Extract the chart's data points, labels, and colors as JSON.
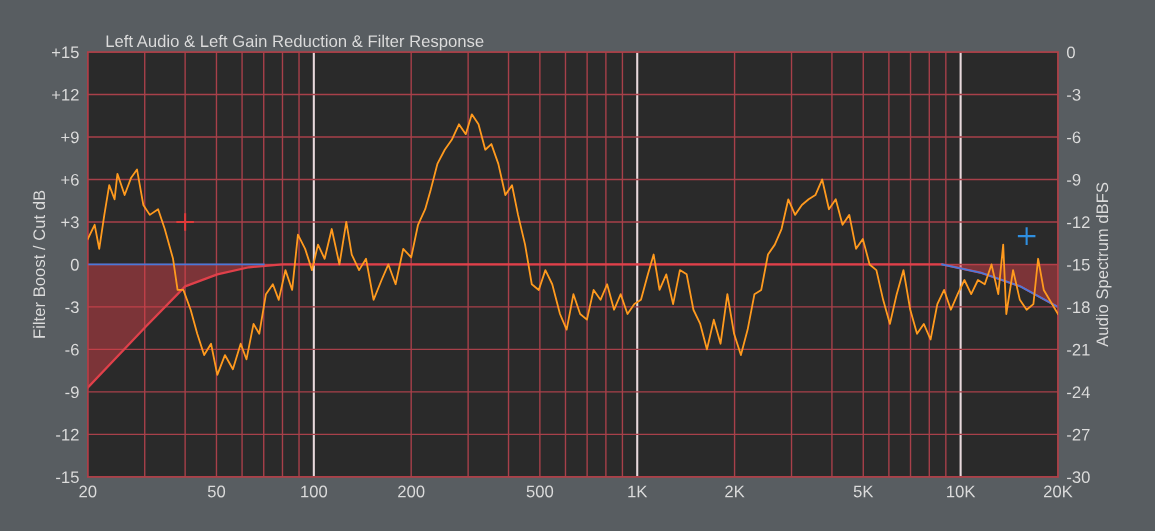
{
  "chart_data": {
    "type": "line",
    "title": "Left Audio & Left Gain Reduction & Filter Response",
    "ylabel": "Filter Boost / Cut dB",
    "y2label": "Audio Spectrum dBFS",
    "log": "x",
    "grid": true,
    "xlim": [
      20,
      20000
    ],
    "xticks": [
      20,
      {
        "value": 30,
        "label": null
      },
      {
        "value": 40,
        "label": null
      },
      50,
      {
        "value": 60,
        "label": null
      },
      {
        "value": 70,
        "label": null
      },
      {
        "value": 80,
        "label": null
      },
      {
        "value": 90,
        "label": null
      },
      100,
      200,
      {
        "value": 300,
        "label": null
      },
      {
        "value": 400,
        "label": null
      },
      500,
      {
        "value": 600,
        "label": null
      },
      {
        "value": 700,
        "label": null
      },
      {
        "value": 800,
        "label": null
      },
      {
        "value": 900,
        "label": null
      },
      {
        "value": 1000,
        "label": "1K"
      },
      {
        "value": 2000,
        "label": "2K"
      },
      {
        "value": 3000,
        "label": null
      },
      {
        "value": 4000,
        "label": null
      },
      {
        "value": 5000,
        "label": "5K"
      },
      {
        "value": 6000,
        "label": null
      },
      {
        "value": 7000,
        "label": null
      },
      {
        "value": 8000,
        "label": null
      },
      {
        "value": 9000,
        "label": null
      },
      {
        "value": 10000,
        "label": "10K"
      },
      {
        "value": 20000,
        "label": "20K"
      }
    ],
    "ylim": [
      -15,
      15
    ],
    "yticks": [
      {
        "value": 15,
        "label": "+15"
      },
      {
        "value": 12,
        "label": "+12"
      },
      {
        "value": 9,
        "label": "+9"
      },
      {
        "value": 6,
        "label": "+6"
      },
      {
        "value": 3,
        "label": "+3"
      },
      0,
      -3,
      -6,
      -9,
      -12,
      -15
    ],
    "y2lim": [
      -30,
      0
    ],
    "y2ticks": [
      0,
      -3,
      -6,
      -9,
      -12,
      -15,
      -18,
      -21,
      -24,
      -27,
      -30
    ],
    "series": [
      {
        "type": "area",
        "color": "#e0404a",
        "x": [
          20,
          30.2,
          40,
          50.3,
          63,
          80,
          8770,
          11600,
          15300,
          20000
        ],
        "values": [
          -8.7,
          -4.4,
          -1.55,
          -0.7,
          -0.2,
          0,
          0,
          -0.6,
          -1.55,
          -3.0
        ]
      },
      {
        "type": "line",
        "color": "#4a78d8",
        "x": [
          20,
          70
        ],
        "values": [
          0,
          0
        ]
      },
      {
        "type": "line",
        "color": "#4a78d8",
        "x": [
          8770,
          11600,
          15300,
          20000
        ],
        "values": [
          0,
          -0.6,
          -1.55,
          -3.0
        ]
      },
      {
        "axis": "y2",
        "color": "#ff9a1e",
        "x": [
          20,
          21,
          21.7,
          22.5,
          23.3,
          24.2,
          24.7,
          26,
          27.2,
          28.4,
          29.7,
          31.1,
          33,
          34.6,
          36.7,
          37.9,
          39.5,
          41.6,
          43.6,
          45.8,
          48.1,
          50.3,
          53.1,
          56.2,
          59.4,
          61.9,
          65.1,
          67.8,
          71.1,
          74.7,
          77.9,
          81.7,
          85.7,
          89.3,
          94,
          98.7,
          103,
          108,
          113.6,
          120,
          126,
          131,
          138,
          145,
          153,
          162,
          170,
          179,
          189,
          200,
          210,
          221,
          230,
          241,
          254,
          267,
          281,
          295,
          308,
          323,
          339,
          354,
          372,
          391,
          410,
          428,
          450,
          472,
          496,
          520,
          546,
          577,
          605,
          635,
          666,
          699,
          733,
          770,
          807,
          848,
          889,
          933,
          980,
          1027,
          1079,
          1124,
          1172,
          1230,
          1291,
          1355,
          1422,
          1492,
          1566,
          1643,
          1725,
          1810,
          1900,
          1993,
          2092,
          2195,
          2304,
          2418,
          2537,
          2663,
          2794,
          2932,
          3077,
          3229,
          3389,
          3556,
          3732,
          3916,
          4110,
          4313,
          4526,
          4750,
          4984,
          5231,
          5489,
          5760,
          6045,
          6344,
          6657,
          6986,
          7331,
          7693,
          8073,
          8472,
          8890,
          9329,
          9790,
          10274,
          10781,
          11314,
          11873,
          12459,
          13074,
          13540,
          13843,
          14527,
          15245,
          15998,
          16788,
          17361,
          18073,
          20000
        ],
        "values": [
          -13.2,
          -12.2,
          -13.9,
          -11.5,
          -9.4,
          -10.4,
          -8.6,
          -10.1,
          -8.9,
          -8.3,
          -10.8,
          -11.5,
          -11.1,
          -12.5,
          -14.6,
          -16.8,
          -16.8,
          -18.2,
          -19.9,
          -21.4,
          -20.6,
          -22.8,
          -21.4,
          -22.4,
          -20.6,
          -21.7,
          -19.2,
          -19.9,
          -17.1,
          -16.4,
          -17.5,
          -15.4,
          -16.8,
          -12.9,
          -13.9,
          -15.4,
          -13.6,
          -14.6,
          -12.5,
          -15,
          -12,
          -14.3,
          -15.4,
          -14.6,
          -17.5,
          -16.1,
          -15,
          -16.4,
          -13.9,
          -14.5,
          -12.2,
          -11.1,
          -9.7,
          -7.9,
          -6.9,
          -6.2,
          -5.1,
          -5.8,
          -4.4,
          -5.1,
          -6.9,
          -6.5,
          -7.9,
          -10.1,
          -9.4,
          -11.5,
          -13.6,
          -16.4,
          -16.8,
          -15.4,
          -16.4,
          -18.5,
          -19.6,
          -17.1,
          -18.5,
          -18.9,
          -16.8,
          -17.5,
          -16.4,
          -18.2,
          -17.1,
          -18.5,
          -17.8,
          -17.5,
          -15.7,
          -14.3,
          -16.8,
          -15.7,
          -17.8,
          -15.4,
          -15.7,
          -18.2,
          -19.2,
          -21,
          -18.9,
          -20.6,
          -17.1,
          -19.9,
          -21.4,
          -19.6,
          -17.1,
          -16.8,
          -14.3,
          -13.6,
          -12.5,
          -10.4,
          -11.5,
          -10.8,
          -10.4,
          -10.1,
          -9,
          -11.1,
          -10.4,
          -12.2,
          -11.5,
          -13.9,
          -13.2,
          -15,
          -15.4,
          -17.5,
          -19.2,
          -17.1,
          -15.4,
          -18.2,
          -19.9,
          -19.2,
          -20.3,
          -17.8,
          -16.8,
          -18.2,
          -17.1,
          -16.1,
          -17.1,
          -16.1,
          -16.4,
          -15,
          -17.1,
          -13.6,
          -18.5,
          -15.4,
          -17.5,
          -18.2,
          -17.8,
          -14.6,
          -16.8,
          -18.5
        ]
      },
      {
        "type": "scatter",
        "marker": "cross",
        "color": "#e03a3a",
        "x": [
          40
        ],
        "values": [
          3
        ]
      },
      {
        "type": "scatter",
        "marker": "cross",
        "color": "#2f8fe0",
        "x": [
          16000
        ],
        "values": [
          2
        ]
      }
    ]
  }
}
